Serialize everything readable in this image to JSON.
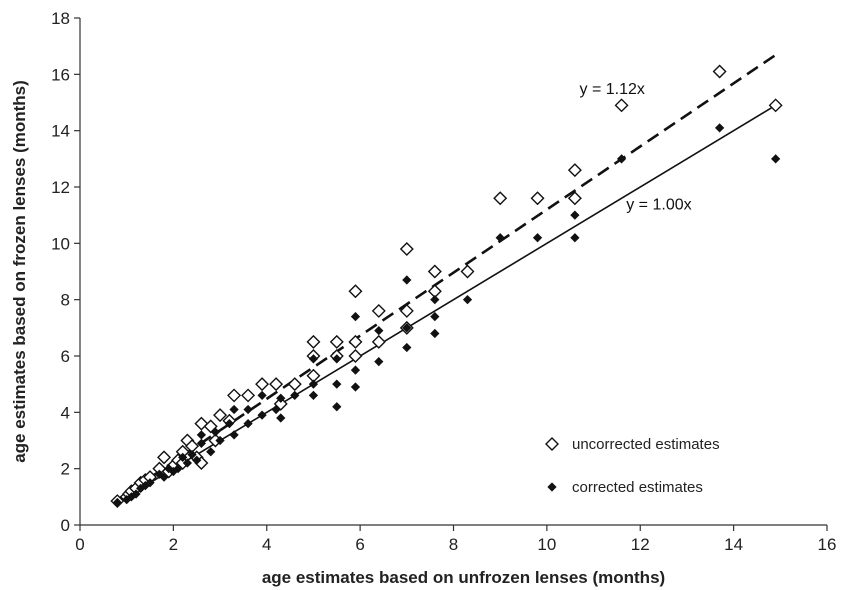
{
  "chart_data": {
    "type": "scatter",
    "xlabel": "age estimates based on unfrozen lenses (months)",
    "ylabel": "age estimates based on frozen lenses (months)",
    "xlim": [
      0,
      16
    ],
    "ylim": [
      0,
      18
    ],
    "xticks": [
      0,
      2,
      4,
      6,
      8,
      10,
      12,
      14,
      16
    ],
    "yticks": [
      0,
      2,
      4,
      6,
      8,
      10,
      12,
      14,
      16,
      18
    ],
    "grid": false,
    "legend_position": "bottom-right",
    "series": [
      {
        "name": "uncorrected estimates",
        "marker": "open-diamond",
        "color": "#111111",
        "points": [
          [
            0.8,
            0.85
          ],
          [
            1.0,
            1.0
          ],
          [
            1.05,
            1.1
          ],
          [
            1.1,
            1.2
          ],
          [
            1.2,
            1.3
          ],
          [
            1.3,
            1.5
          ],
          [
            1.4,
            1.6
          ],
          [
            1.5,
            1.7
          ],
          [
            1.7,
            2.0
          ],
          [
            1.8,
            2.4
          ],
          [
            1.9,
            1.9
          ],
          [
            2.0,
            2.1
          ],
          [
            2.1,
            2.3
          ],
          [
            2.2,
            2.2
          ],
          [
            2.2,
            2.6
          ],
          [
            2.3,
            3.0
          ],
          [
            2.4,
            2.8
          ],
          [
            2.5,
            2.4
          ],
          [
            2.6,
            3.6
          ],
          [
            2.6,
            2.2
          ],
          [
            2.8,
            3.5
          ],
          [
            2.9,
            3.0
          ],
          [
            3.0,
            3.9
          ],
          [
            3.2,
            3.7
          ],
          [
            3.3,
            4.6
          ],
          [
            3.6,
            4.6
          ],
          [
            3.9,
            5.0
          ],
          [
            4.2,
            5.0
          ],
          [
            4.3,
            4.3
          ],
          [
            4.6,
            5.0
          ],
          [
            5.0,
            6.5
          ],
          [
            5.0,
            6.0
          ],
          [
            5.0,
            5.3
          ],
          [
            5.5,
            6.5
          ],
          [
            5.5,
            6.0
          ],
          [
            5.9,
            8.3
          ],
          [
            5.9,
            6.5
          ],
          [
            5.9,
            6.0
          ],
          [
            6.4,
            7.6
          ],
          [
            6.4,
            6.5
          ],
          [
            7.0,
            9.8
          ],
          [
            7.0,
            7.6
          ],
          [
            7.0,
            7.0
          ],
          [
            7.6,
            9.0
          ],
          [
            7.6,
            8.3
          ],
          [
            8.3,
            9.0
          ],
          [
            9.0,
            11.6
          ],
          [
            9.8,
            11.6
          ],
          [
            10.6,
            12.6
          ],
          [
            10.6,
            11.6
          ],
          [
            11.6,
            14.9
          ],
          [
            13.7,
            16.1
          ],
          [
            14.9,
            14.9
          ]
        ]
      },
      {
        "name": "corrected estimates",
        "marker": "filled-diamond",
        "color": "#111111",
        "points": [
          [
            0.8,
            0.8
          ],
          [
            1.0,
            0.9
          ],
          [
            1.1,
            1.0
          ],
          [
            1.2,
            1.1
          ],
          [
            1.3,
            1.3
          ],
          [
            1.4,
            1.4
          ],
          [
            1.5,
            1.5
          ],
          [
            1.7,
            1.8
          ],
          [
            1.8,
            1.7
          ],
          [
            1.9,
            2.0
          ],
          [
            2.0,
            1.9
          ],
          [
            2.1,
            2.0
          ],
          [
            2.2,
            2.4
          ],
          [
            2.3,
            2.2
          ],
          [
            2.4,
            2.5
          ],
          [
            2.5,
            2.3
          ],
          [
            2.6,
            2.9
          ],
          [
            2.6,
            3.2
          ],
          [
            2.8,
            2.6
          ],
          [
            2.9,
            3.3
          ],
          [
            3.0,
            3.0
          ],
          [
            3.2,
            3.6
          ],
          [
            3.3,
            3.2
          ],
          [
            3.3,
            4.1
          ],
          [
            3.6,
            3.6
          ],
          [
            3.6,
            4.1
          ],
          [
            3.9,
            3.9
          ],
          [
            3.9,
            4.6
          ],
          [
            4.2,
            4.1
          ],
          [
            4.3,
            3.8
          ],
          [
            4.3,
            4.5
          ],
          [
            4.6,
            4.6
          ],
          [
            5.0,
            4.6
          ],
          [
            5.0,
            5.0
          ],
          [
            5.0,
            5.9
          ],
          [
            5.5,
            4.2
          ],
          [
            5.5,
            5.0
          ],
          [
            5.5,
            5.9
          ],
          [
            5.9,
            4.9
          ],
          [
            5.9,
            5.5
          ],
          [
            5.9,
            7.4
          ],
          [
            6.4,
            5.8
          ],
          [
            6.4,
            6.9
          ],
          [
            7.0,
            6.3
          ],
          [
            7.0,
            7.0
          ],
          [
            7.0,
            8.7
          ],
          [
            7.6,
            6.8
          ],
          [
            7.6,
            7.4
          ],
          [
            7.6,
            8.0
          ],
          [
            8.3,
            8.0
          ],
          [
            9.0,
            10.2
          ],
          [
            9.8,
            10.2
          ],
          [
            10.6,
            10.2
          ],
          [
            10.6,
            11.0
          ],
          [
            11.6,
            13.0
          ],
          [
            13.7,
            14.1
          ],
          [
            14.9,
            13.0
          ]
        ]
      }
    ],
    "fit_lines": [
      {
        "label": "y = 1.12x",
        "slope": 1.12,
        "x_range": [
          0.8,
          14.9
        ],
        "style": "dashed"
      },
      {
        "label": "y = 1.00x",
        "slope": 1.0,
        "x_range": [
          0.8,
          14.9
        ],
        "style": "solid"
      }
    ],
    "annotations": [
      {
        "text": "y = 1.12x",
        "x": 11.4,
        "y": 15.3
      },
      {
        "text": "y = 1.00x",
        "x": 12.4,
        "y": 11.2
      }
    ]
  }
}
